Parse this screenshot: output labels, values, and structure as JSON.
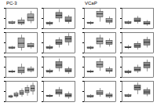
{
  "chart_data": [
    {
      "type": "box",
      "title": "PC-3",
      "categories": [
        null,
        null,
        null
      ],
      "values": [
        [
          0.8,
          1.0,
          1.1,
          1.3,
          1.5
        ],
        [
          0.6,
          0.9,
          1.2,
          1.6,
          2.1
        ],
        [
          1.0,
          1.5,
          2.2,
          2.8,
          3.4
        ]
      ],
      "color": "#a6a6a6",
      "ylim": [
        0,
        4
      ],
      "yticks": [
        0,
        2,
        4
      ],
      "grid": false,
      "tick_labels": false
    },
    {
      "type": "box",
      "categories": [
        null,
        null,
        null
      ],
      "values": [
        [
          0.5,
          0.9,
          1.0,
          1.2,
          1.4
        ],
        [
          1.2,
          2.0,
          2.6,
          3.1,
          3.7
        ],
        [
          0.9,
          1.3,
          1.6,
          2.2,
          2.6
        ]
      ],
      "color": "#8c8c8c",
      "ylim": [
        0,
        4
      ],
      "yticks": [
        0,
        2,
        4
      ],
      "grid": false,
      "tick_labels": false
    },
    {
      "type": "box",
      "categories": [
        null,
        null,
        null
      ],
      "values": [
        [
          0.7,
          0.9,
          1.0,
          1.1,
          1.3
        ],
        [
          0.4,
          1.0,
          1.9,
          2.9,
          3.5
        ],
        [
          0.8,
          1.1,
          1.4,
          1.8,
          2.0
        ]
      ],
      "color": "#a6a6a6",
      "ylim": [
        0,
        4
      ],
      "yticks": [
        0,
        2,
        4
      ],
      "grid": false,
      "tick_labels": false
    },
    {
      "type": "box",
      "categories": [
        null,
        null,
        null
      ],
      "values": [
        [
          0.6,
          0.9,
          1.0,
          1.2,
          1.5
        ],
        [
          1.0,
          1.6,
          2.0,
          2.5,
          3.0
        ],
        [
          1.4,
          2.1,
          2.8,
          3.2,
          3.8
        ]
      ],
      "color": "#8c8c8c",
      "ylim": [
        0,
        4
      ],
      "yticks": [
        0,
        2,
        4
      ],
      "grid": false,
      "tick_labels": false
    },
    {
      "type": "box",
      "categories": [
        null,
        null,
        null
      ],
      "values": [
        [
          0.8,
          1.0,
          1.1,
          1.2,
          1.4
        ],
        [
          0.5,
          0.8,
          1.3,
          1.9,
          2.6
        ],
        [
          0.9,
          1.2,
          1.5,
          1.7,
          2.1
        ]
      ],
      "color": "#a6a6a6",
      "ylim": [
        0,
        4
      ],
      "yticks": [
        0,
        2,
        4
      ],
      "grid": false,
      "tick_labels": false
    },
    {
      "type": "box",
      "categories": [
        null,
        null,
        null
      ],
      "values": [
        [
          0.7,
          1.0,
          1.1,
          1.3,
          1.6
        ],
        [
          1.1,
          1.8,
          2.4,
          3.0,
          3.6
        ],
        [
          0.6,
          1.0,
          1.3,
          1.6,
          2.0
        ]
      ],
      "color": "#8c8c8c",
      "ylim": [
        0,
        4
      ],
      "yticks": [
        0,
        2,
        4
      ],
      "grid": false,
      "tick_labels": false
    },
    {
      "type": "box",
      "categories": [
        null,
        null,
        null,
        null,
        null
      ],
      "values": [
        [
          0.6,
          0.8,
          1.0,
          1.1,
          1.3
        ],
        [
          0.7,
          1.0,
          1.3,
          1.6,
          1.9
        ],
        [
          0.9,
          1.3,
          1.7,
          2.1,
          2.5
        ],
        [
          1.1,
          1.7,
          2.2,
          2.7,
          3.2
        ],
        [
          1.3,
          2.0,
          2.6,
          3.1,
          3.7
        ]
      ],
      "color": "#a6a6a6",
      "ylim": [
        0,
        4
      ],
      "yticks": [
        0,
        2,
        4
      ],
      "grid": false,
      "tick_labels": false
    },
    {
      "type": "box",
      "categories": [
        null,
        null,
        null
      ],
      "values": [
        [
          0.8,
          1.0,
          1.1,
          1.2,
          1.4
        ],
        [
          0.9,
          1.4,
          1.8,
          2.3,
          2.8
        ],
        [
          0.5,
          0.9,
          1.2,
          1.5,
          1.9
        ]
      ],
      "color": "#8c8c8c",
      "ylim": [
        0,
        4
      ],
      "yticks": [
        0,
        2,
        4
      ],
      "grid": false,
      "tick_labels": false
    },
    {
      "type": "box",
      "title": "VCaP",
      "categories": [
        null,
        null,
        null
      ],
      "values": [
        [
          0.7,
          1.0,
          1.1,
          1.2,
          1.4
        ],
        [
          1.3,
          2.2,
          2.9,
          3.3,
          3.8
        ],
        [
          0.8,
          1.2,
          1.5,
          1.9,
          2.3
        ]
      ],
      "color": "#a6a6a6",
      "ylim": [
        0,
        4
      ],
      "yticks": [
        0,
        2,
        4
      ],
      "grid": false,
      "tick_labels": false
    },
    {
      "type": "box",
      "categories": [
        null,
        null,
        null
      ],
      "values": [
        [
          0.8,
          1.0,
          1.1,
          1.3,
          1.5
        ],
        [
          0.9,
          1.3,
          1.6,
          2.0,
          2.4
        ],
        [
          0.5,
          0.8,
          1.0,
          1.3,
          1.6
        ]
      ],
      "color": "#8c8c8c",
      "ylim": [
        0,
        4
      ],
      "yticks": [
        0,
        2,
        4
      ],
      "grid": false,
      "tick_labels": false
    },
    {
      "type": "box",
      "categories": [
        null,
        null,
        null
      ],
      "values": [
        [
          0.6,
          0.9,
          1.0,
          1.1,
          1.3
        ],
        [
          1.0,
          1.7,
          2.3,
          2.9,
          3.5
        ],
        [
          1.2,
          1.6,
          2.0,
          2.4,
          2.8
        ]
      ],
      "color": "#a6a6a6",
      "ylim": [
        0,
        4
      ],
      "yticks": [
        0,
        2,
        4
      ],
      "grid": false,
      "tick_labels": false
    },
    {
      "type": "box",
      "categories": [
        null,
        null,
        null
      ],
      "values": [
        [
          0.7,
          1.0,
          1.1,
          1.2,
          1.5
        ],
        [
          0.6,
          1.0,
          1.4,
          1.8,
          2.2
        ],
        [
          1.0,
          1.5,
          2.1,
          2.6,
          3.1
        ]
      ],
      "color": "#8c8c8c",
      "ylim": [
        0,
        4
      ],
      "yticks": [
        0,
        2,
        4
      ],
      "grid": false,
      "tick_labels": false
    },
    {
      "type": "box",
      "categories": [
        null,
        null,
        null
      ],
      "values": [
        [
          0.8,
          1.0,
          1.1,
          1.2,
          1.4
        ],
        [
          1.2,
          1.9,
          2.5,
          3.0,
          3.6
        ],
        [
          0.7,
          1.1,
          1.3,
          1.6,
          2.0
        ]
      ],
      "color": "#a6a6a6",
      "ylim": [
        0,
        4
      ],
      "yticks": [
        0,
        2,
        4
      ],
      "grid": false,
      "tick_labels": false
    },
    {
      "type": "box",
      "categories": [
        null,
        null,
        null
      ],
      "values": [
        [
          0.6,
          0.9,
          1.0,
          1.2,
          1.4
        ],
        [
          0.8,
          1.2,
          1.5,
          1.9,
          2.4
        ],
        [
          1.1,
          1.8,
          2.4,
          2.9,
          3.4
        ]
      ],
      "color": "#8c8c8c",
      "ylim": [
        0,
        4
      ],
      "yticks": [
        0,
        2,
        4
      ],
      "grid": false,
      "tick_labels": false
    },
    {
      "type": "box",
      "categories": [
        null,
        null,
        null
      ],
      "values": [
        [
          0.7,
          0.9,
          1.0,
          1.2,
          1.4
        ],
        [
          0.9,
          1.3,
          1.7,
          2.1,
          2.6
        ],
        [
          0.6,
          0.9,
          1.2,
          1.4,
          1.8
        ]
      ],
      "color": "#a6a6a6",
      "ylim": [
        0,
        4
      ],
      "yticks": [
        0,
        2,
        4
      ],
      "grid": false,
      "tick_labels": false
    },
    {
      "type": "box",
      "categories": [
        null,
        null,
        null
      ],
      "values": [
        [
          0.8,
          1.0,
          1.1,
          1.3,
          1.5
        ],
        [
          1.4,
          2.2,
          2.8,
          3.2,
          3.7
        ],
        [
          1.0,
          1.4,
          1.9,
          2.3,
          2.7
        ]
      ],
      "color": "#8c8c8c",
      "ylim": [
        0,
        4
      ],
      "yticks": [
        0,
        2,
        4
      ],
      "grid": false,
      "tick_labels": false
    }
  ]
}
